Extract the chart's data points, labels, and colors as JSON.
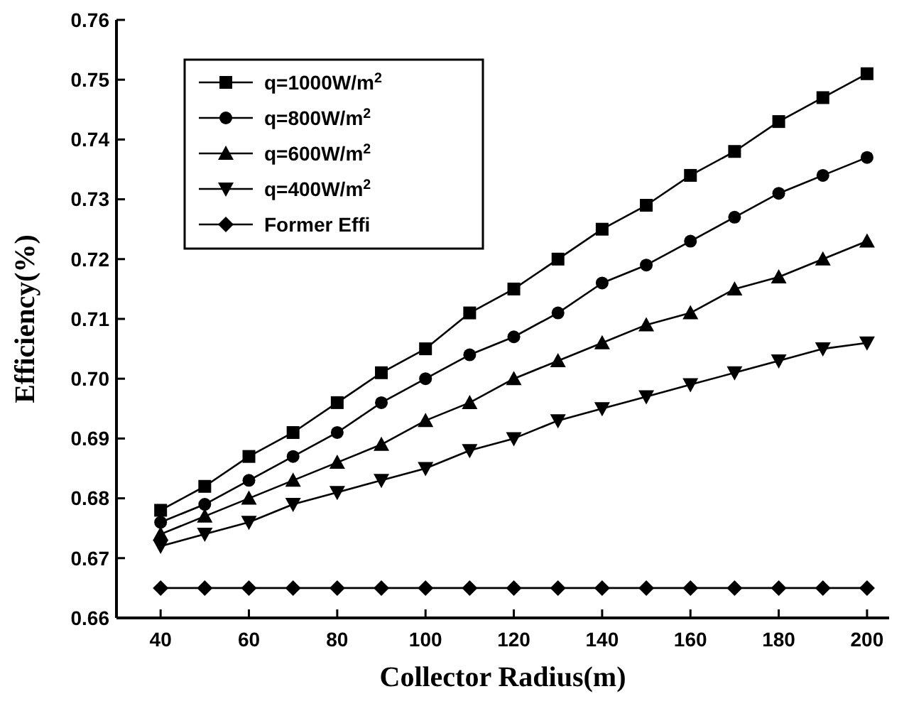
{
  "chart_data": {
    "type": "line",
    "xlabel": "Collector Radius(m)",
    "ylabel": "Efficiency(%)",
    "x": [
      40,
      50,
      60,
      70,
      80,
      90,
      100,
      110,
      120,
      130,
      140,
      150,
      160,
      170,
      180,
      190,
      200
    ],
    "xlim": [
      30,
      205
    ],
    "xticks": [
      40,
      60,
      80,
      100,
      120,
      140,
      160,
      180,
      200
    ],
    "ylim": [
      0.66,
      0.76
    ],
    "yticks": [
      0.66,
      0.67,
      0.68,
      0.69,
      {
        "value": 0.7,
        "label": "0.70"
      },
      0.71,
      0.72,
      0.73,
      0.74,
      0.75,
      0.76
    ],
    "grid": false,
    "legend": "top left",
    "line_style": "solid",
    "series": [
      {
        "name": "q=1000W/m$^{2}$",
        "color": "#000000",
        "marker": "square",
        "values": [
          0.678,
          0.682,
          0.687,
          0.691,
          0.696,
          0.701,
          0.705,
          0.711,
          0.715,
          0.72,
          0.725,
          0.729,
          0.734,
          0.738,
          0.743,
          0.747,
          0.751
        ]
      },
      {
        "name": "q=800W/m$^{2}$",
        "color": "#000000",
        "marker": "circle",
        "values": [
          0.676,
          0.679,
          0.683,
          0.687,
          0.691,
          0.696,
          0.7,
          0.704,
          0.707,
          0.711,
          0.716,
          0.719,
          0.723,
          0.727,
          0.731,
          0.734,
          0.737
        ]
      },
      {
        "name": "q=600W/m$^{2}$",
        "color": "#000000",
        "marker": "triangle",
        "values": [
          0.674,
          0.677,
          0.68,
          0.683,
          0.686,
          0.689,
          0.693,
          0.696,
          0.7,
          0.703,
          0.706,
          0.709,
          0.711,
          0.715,
          0.717,
          0.72,
          0.723
        ]
      },
      {
        "name": "q=400W/m$^{2}$",
        "color": "#000000",
        "marker": "triangle-down",
        "values": [
          0.672,
          0.674,
          0.676,
          0.679,
          0.681,
          0.683,
          0.685,
          0.688,
          0.69,
          0.693,
          0.695,
          0.697,
          0.699,
          0.701,
          0.703,
          0.705,
          0.706
        ]
      },
      {
        "name": "Former Effi",
        "color": "#000000",
        "marker": "diamond",
        "values": [
          0.665,
          0.665,
          0.665,
          0.665,
          0.665,
          0.665,
          0.665,
          0.665,
          0.665,
          0.665,
          0.665,
          0.665,
          0.665,
          0.665,
          0.665,
          0.665,
          0.665
        ]
      }
    ]
  }
}
